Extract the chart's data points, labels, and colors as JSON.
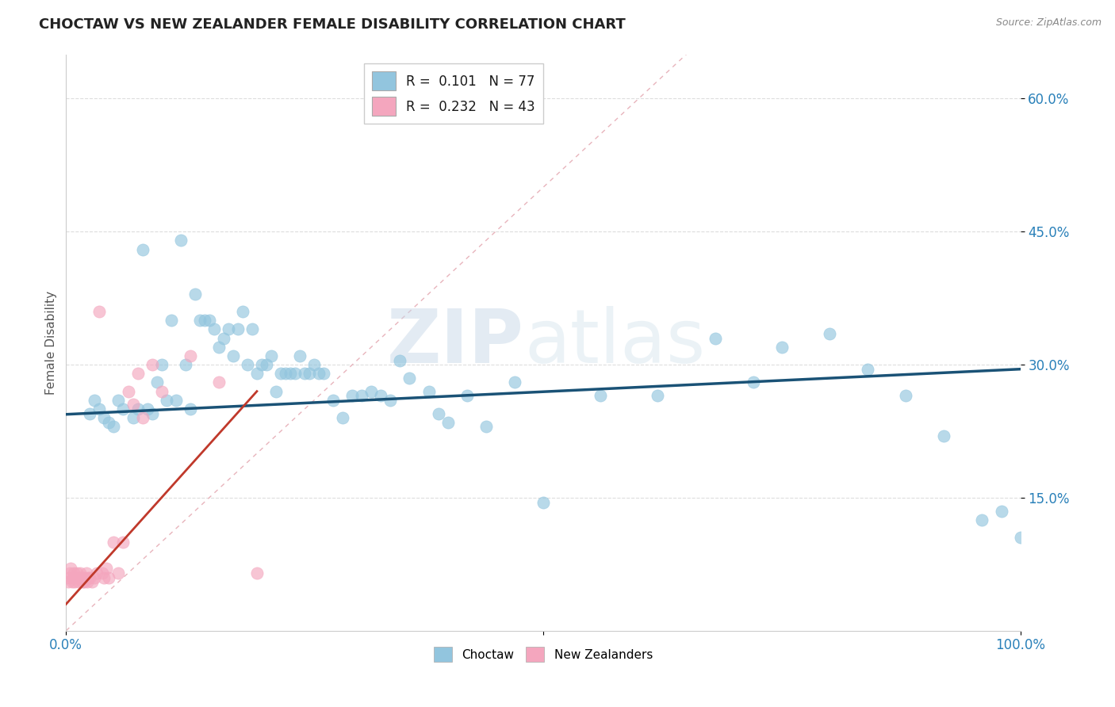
{
  "title": "CHOCTAW VS NEW ZEALANDER FEMALE DISABILITY CORRELATION CHART",
  "source": "Source: ZipAtlas.com",
  "ylabel": "Female Disability",
  "watermark_zip": "ZIP",
  "watermark_atlas": "atlas",
  "choctaw_color": "#92c5de",
  "nz_color": "#f4a6be",
  "trendline_blue": "#1a5276",
  "trendline_pink": "#c0392b",
  "diagonal_color": "#e8b4bc",
  "legend_r1": "R = ",
  "legend_r1_val": "0.101",
  "legend_n1": "  N = ",
  "legend_n1_val": "77",
  "legend_r2": "R = ",
  "legend_r2_val": "0.232",
  "legend_n2": "  N = ",
  "legend_n2_val": "43",
  "choctaw_x": [
    0.025,
    0.03,
    0.035,
    0.04,
    0.045,
    0.05,
    0.055,
    0.06,
    0.07,
    0.075,
    0.08,
    0.085,
    0.09,
    0.095,
    0.1,
    0.105,
    0.11,
    0.115,
    0.12,
    0.125,
    0.13,
    0.135,
    0.14,
    0.145,
    0.15,
    0.155,
    0.16,
    0.165,
    0.17,
    0.175,
    0.18,
    0.185,
    0.19,
    0.195,
    0.2,
    0.205,
    0.21,
    0.215,
    0.22,
    0.225,
    0.23,
    0.235,
    0.24,
    0.245,
    0.25,
    0.255,
    0.26,
    0.265,
    0.27,
    0.28,
    0.29,
    0.3,
    0.31,
    0.32,
    0.33,
    0.34,
    0.35,
    0.36,
    0.38,
    0.39,
    0.4,
    0.42,
    0.44,
    0.47,
    0.5,
    0.56,
    0.62,
    0.68,
    0.72,
    0.75,
    0.8,
    0.84,
    0.88,
    0.92,
    0.96,
    0.98,
    1.0
  ],
  "choctaw_y": [
    0.245,
    0.26,
    0.25,
    0.24,
    0.235,
    0.23,
    0.26,
    0.25,
    0.24,
    0.25,
    0.43,
    0.25,
    0.245,
    0.28,
    0.3,
    0.26,
    0.35,
    0.26,
    0.44,
    0.3,
    0.25,
    0.38,
    0.35,
    0.35,
    0.35,
    0.34,
    0.32,
    0.33,
    0.34,
    0.31,
    0.34,
    0.36,
    0.3,
    0.34,
    0.29,
    0.3,
    0.3,
    0.31,
    0.27,
    0.29,
    0.29,
    0.29,
    0.29,
    0.31,
    0.29,
    0.29,
    0.3,
    0.29,
    0.29,
    0.26,
    0.24,
    0.265,
    0.265,
    0.27,
    0.265,
    0.26,
    0.305,
    0.285,
    0.27,
    0.245,
    0.235,
    0.265,
    0.23,
    0.28,
    0.145,
    0.265,
    0.265,
    0.33,
    0.28,
    0.32,
    0.335,
    0.295,
    0.265,
    0.22,
    0.125,
    0.135,
    0.105
  ],
  "nz_x": [
    0.002,
    0.003,
    0.004,
    0.005,
    0.006,
    0.007,
    0.008,
    0.009,
    0.01,
    0.011,
    0.012,
    0.013,
    0.014,
    0.015,
    0.016,
    0.017,
    0.018,
    0.019,
    0.02,
    0.021,
    0.022,
    0.023,
    0.025,
    0.027,
    0.03,
    0.032,
    0.035,
    0.038,
    0.04,
    0.042,
    0.045,
    0.05,
    0.055,
    0.06,
    0.065,
    0.07,
    0.075,
    0.08,
    0.09,
    0.1,
    0.13,
    0.16,
    0.2
  ],
  "nz_y": [
    0.055,
    0.06,
    0.065,
    0.07,
    0.055,
    0.06,
    0.065,
    0.055,
    0.06,
    0.065,
    0.06,
    0.055,
    0.06,
    0.065,
    0.06,
    0.055,
    0.06,
    0.055,
    0.06,
    0.065,
    0.055,
    0.06,
    0.06,
    0.055,
    0.06,
    0.065,
    0.36,
    0.065,
    0.06,
    0.07,
    0.06,
    0.1,
    0.065,
    0.1,
    0.27,
    0.255,
    0.29,
    0.24,
    0.3,
    0.27,
    0.31,
    0.28,
    0.065
  ],
  "blue_trend_x0": 0.0,
  "blue_trend_y0": 0.244,
  "blue_trend_x1": 1.0,
  "blue_trend_y1": 0.295,
  "pink_trend_x0": 0.0,
  "pink_trend_y0": 0.03,
  "pink_trend_x1": 0.2,
  "pink_trend_y1": 0.27,
  "xlim": [
    0.0,
    1.0
  ],
  "ylim": [
    0.0,
    0.65
  ],
  "yticks": [
    0.15,
    0.3,
    0.45,
    0.6
  ],
  "xticks": [
    0.0,
    0.5,
    1.0
  ],
  "xtick_labels": [
    "0.0%",
    "",
    "100.0%"
  ],
  "ytick_labels": [
    "15.0%",
    "30.0%",
    "45.0%",
    "60.0%"
  ],
  "grid_color": "#dddddd",
  "bg_color": "#ffffff",
  "title_color": "#222222",
  "tick_color": "#2980b9",
  "ylabel_color": "#555555"
}
